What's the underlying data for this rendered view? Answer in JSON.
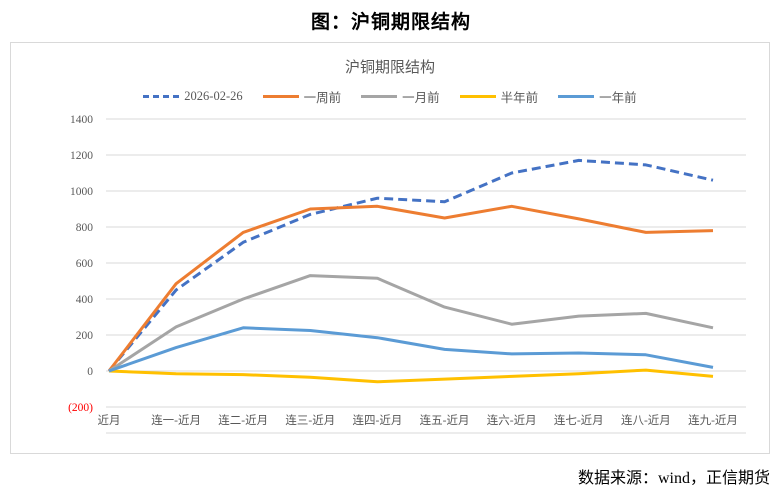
{
  "page": {
    "title": "图：沪铜期限结构",
    "source": "数据来源：wind，正信期货"
  },
  "chart_data": {
    "type": "line",
    "title": "沪铜期限结构",
    "categories": [
      "近月",
      "连一-近月",
      "连二-近月",
      "连三-近月",
      "连四-近月",
      "连五-近月",
      "连六-近月",
      "连七-近月",
      "连八-近月",
      "连九-近月"
    ],
    "series": [
      {
        "name": "2026-02-26",
        "color": "#4472C4",
        "dash": true,
        "values": [
          0,
          450,
          715,
          870,
          960,
          940,
          1100,
          1170,
          1145,
          1060
        ]
      },
      {
        "name": "一周前",
        "color": "#ED7D31",
        "dash": false,
        "values": [
          0,
          485,
          770,
          900,
          915,
          850,
          915,
          845,
          770,
          780
        ]
      },
      {
        "name": "一月前",
        "color": "#A5A5A5",
        "dash": false,
        "values": [
          0,
          245,
          400,
          530,
          515,
          355,
          260,
          305,
          320,
          240
        ]
      },
      {
        "name": "半年前",
        "color": "#FFC000",
        "dash": false,
        "values": [
          0,
          -15,
          -20,
          -35,
          -60,
          -45,
          -30,
          -15,
          5,
          -30
        ]
      },
      {
        "name": "一年前",
        "color": "#5B9BD5",
        "dash": false,
        "values": [
          0,
          130,
          240,
          225,
          185,
          120,
          95,
          100,
          90,
          20
        ]
      }
    ],
    "ylim": [
      -200,
      1400
    ],
    "ytick_values": [
      1400,
      1200,
      1000,
      800,
      600,
      400,
      200,
      0,
      -200
    ],
    "ytick_labels": [
      "1400",
      "1200",
      "1000",
      "800",
      "600",
      "400",
      "200",
      "0",
      "(200)"
    ],
    "negative_tick_color": "#FF0000",
    "grid": true,
    "gridline_color": "#D9D9D9",
    "text_color": "#595959",
    "legend_position": "top"
  }
}
